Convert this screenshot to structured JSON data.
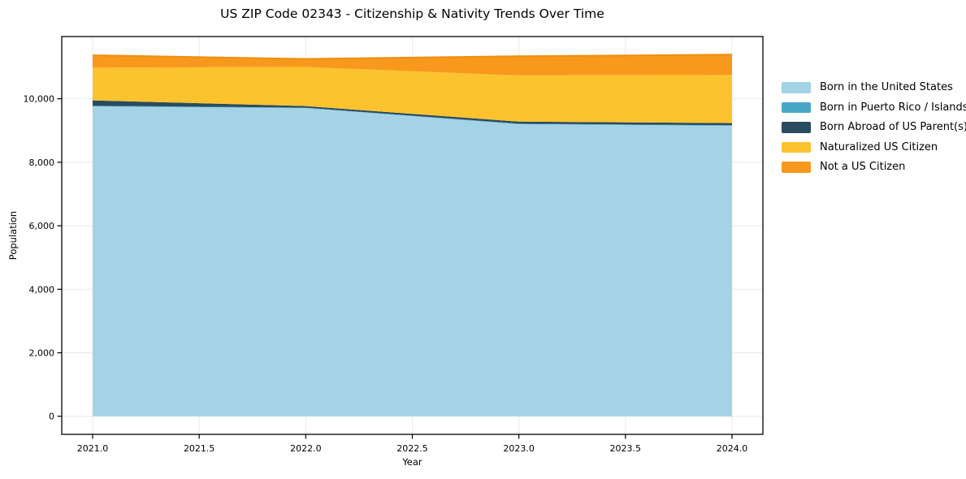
{
  "title": "US ZIP Code 02343 - Citizenship & Nativity Trends Over Time",
  "chart_data": {
    "type": "area",
    "stacked": true,
    "title": "US ZIP Code 02343 - Citizenship & Nativity Trends Over Time",
    "xlabel": "Year",
    "ylabel": "Population",
    "x": [
      2021,
      2022,
      2023,
      2024
    ],
    "series": [
      {
        "name": "Born in the United States",
        "color": "#A5D3E6",
        "values": [
          9760,
          9705,
          9200,
          9150
        ]
      },
      {
        "name": "Born in Puerto Rico / Islands",
        "color": "#48A7C7",
        "values": [
          20,
          15,
          15,
          15
        ]
      },
      {
        "name": "Born Abroad of US Parent(s)",
        "color": "#2A4B5F",
        "values": [
          170,
          50,
          65,
          70
        ]
      },
      {
        "name": "Naturalized US Citizen",
        "color": "#FCC32F",
        "values": [
          1030,
          1230,
          1455,
          1515
        ]
      },
      {
        "name": "Not a US Citizen",
        "color": "#F8981D",
        "values": [
          390,
          255,
          605,
          640
        ]
      }
    ],
    "totals": [
      11370,
      11255,
      11340,
      11390
    ],
    "top_edge_color": "#EF8E10",
    "xticks": [
      2021.0,
      2021.5,
      2022.0,
      2022.5,
      2023.0,
      2023.5,
      2024.0
    ],
    "yticks": [
      0,
      2000,
      4000,
      6000,
      8000,
      10000
    ],
    "xlim": [
      2020.855,
      2024.145
    ],
    "ylim": [
      -570,
      11960
    ],
    "grid": true,
    "grid_color": "#E7E7E7",
    "axis_color": "#000000",
    "legend_position": "right-outside"
  }
}
